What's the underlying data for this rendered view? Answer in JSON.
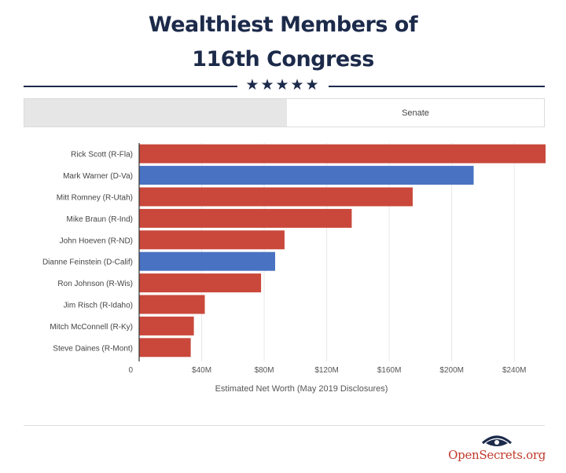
{
  "header": {
    "title_line1": "Wealthiest Members of",
    "title_line2": "116th Congress",
    "stars": "★★★★★"
  },
  "tabs": [
    {
      "label": "",
      "active": false
    },
    {
      "label": "Senate",
      "active": true
    }
  ],
  "chart_data": {
    "type": "bar",
    "orientation": "horizontal",
    "categories": [
      "Rick Scott (R-Fla)",
      "Mark Warner (D-Va)",
      "Mitt Romney (R-Utah)",
      "Mike Braun (R-Ind)",
      "John Hoeven (R-ND)",
      "Dianne Feinstein (D-Calif)",
      "Ron Johnson (R-Wis)",
      "Jim Risch (R-Idaho)",
      "Mitch McConnell (R-Ky)",
      "Steve Daines (R-Mont)"
    ],
    "values": [
      260,
      214,
      175,
      136,
      93,
      87,
      78,
      42,
      35,
      33
    ],
    "value_unit": "million USD",
    "party": [
      "R",
      "D",
      "R",
      "R",
      "R",
      "D",
      "R",
      "R",
      "R",
      "R"
    ],
    "party_colors": {
      "R": "#c9483b",
      "D": "#4a72c3"
    },
    "xlim": [
      0,
      260
    ],
    "xticks": [
      0,
      40,
      80,
      120,
      160,
      200,
      240
    ],
    "xtick_labels": [
      "0",
      "$40M",
      "$80M",
      "$120M",
      "$160M",
      "$200M",
      "$240M"
    ],
    "xlabel": "Estimated Net Worth (May 2019 Disclosures)",
    "ylabel": "",
    "grid": true
  },
  "footer": {
    "brand": "OpenSecrets.org",
    "brand_icon": "eye-icon",
    "brand_color": "#c0392b",
    "icon_color": "#1c2a4a"
  }
}
